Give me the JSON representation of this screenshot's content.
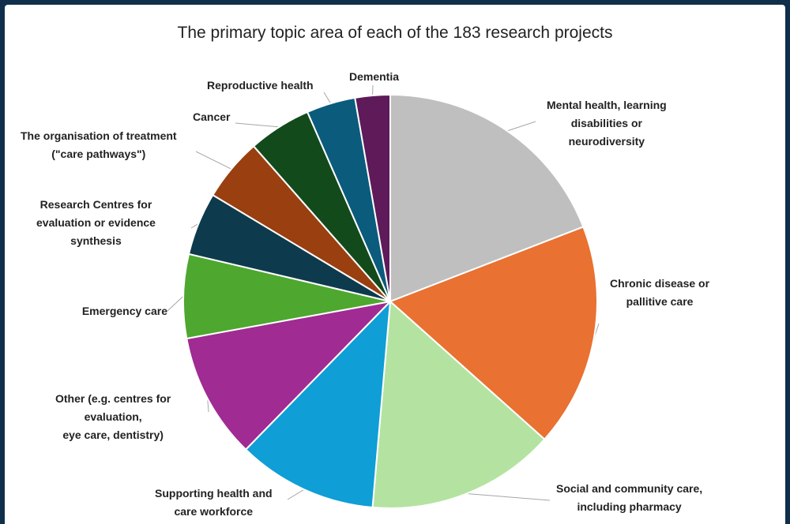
{
  "chart_data": {
    "type": "pie",
    "title": "The primary topic area of each of the 183 research projects",
    "slices": [
      {
        "label": [
          "Mental health, learning",
          "disabilities or",
          "neurodiversity"
        ],
        "value": 35,
        "color": "#bfbfbf"
      },
      {
        "label": [
          "Chronic disease or",
          "pallitive care"
        ],
        "value": 32,
        "color": "#e97132"
      },
      {
        "label": [
          "Social and community care,",
          "including pharmacy"
        ],
        "value": 27,
        "color": "#b4e3a1"
      },
      {
        "label": [
          "Supporting health and",
          "care workforce"
        ],
        "value": 20,
        "color": "#0f9ed5"
      },
      {
        "label": [
          "Other (e.g. centres for",
          "evaluation,",
          "eye care, dentistry)"
        ],
        "value": 18,
        "color": "#a02b93"
      },
      {
        "label": [
          "Emergency care"
        ],
        "value": 12,
        "color": "#4ea72e"
      },
      {
        "label": [
          "Research Centres for",
          "evaluation or evidence",
          "synthesis"
        ],
        "value": 9,
        "color": "#0e3a4d"
      },
      {
        "label": [
          "The organisation  of treatment",
          "(\"care pathways\")"
        ],
        "value": 9,
        "color": "#9a3f10"
      },
      {
        "label": [
          "Cancer"
        ],
        "value": 9,
        "color": "#124a1c"
      },
      {
        "label": [
          "Reproductive health"
        ],
        "value": 7,
        "color": "#0b5b7c"
      },
      {
        "label": [
          "Dementia"
        ],
        "value": 5,
        "color": "#5e1a59"
      }
    ]
  }
}
